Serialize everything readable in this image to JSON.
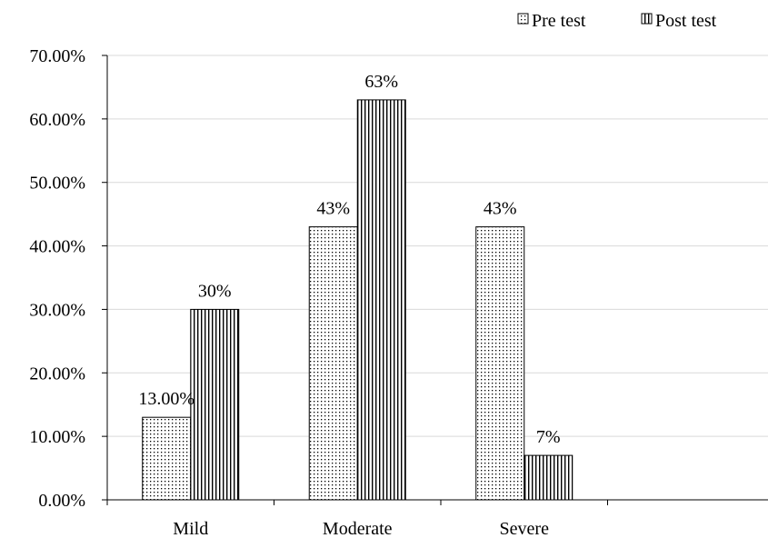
{
  "chart_data": {
    "type": "bar",
    "title": "",
    "xlabel": "",
    "ylabel": "",
    "categories": [
      "Mild",
      "Moderate",
      "Severe",
      ""
    ],
    "series": [
      {
        "name": "Pre test",
        "values": [
          13,
          43,
          43,
          null
        ],
        "labels": [
          "13.00%",
          "43%",
          "43%",
          ""
        ],
        "pattern": "dots"
      },
      {
        "name": "Post test",
        "values": [
          30,
          63,
          7,
          null
        ],
        "labels": [
          "30%",
          "63%",
          "7%",
          ""
        ],
        "pattern": "vertical-lines"
      }
    ],
    "ylim": [
      0,
      70
    ],
    "yticks": [
      "0.00%",
      "10.00%",
      "20.00%",
      "30.00%",
      "40.00%",
      "50.00%",
      "60.00%",
      "70.00%"
    ],
    "grid": true,
    "legend_position": "top-right"
  }
}
